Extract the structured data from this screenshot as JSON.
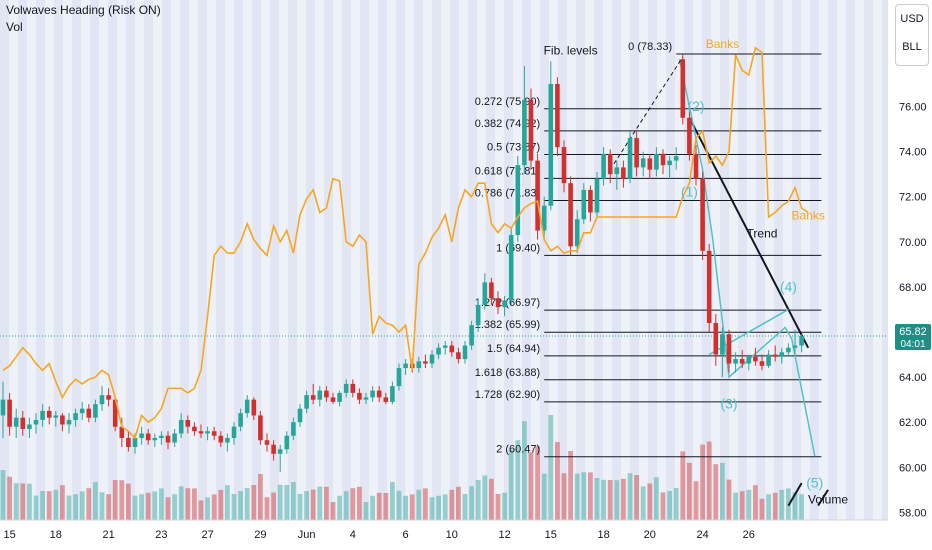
{
  "header": {
    "title": "Volwaves Heading (Risk ON)",
    "vol_label": "Vol"
  },
  "currency": {
    "top": "USD",
    "bottom": "BLL"
  },
  "colors": {
    "bull": "#26a69a",
    "bear": "#d32f2f",
    "banks": "#f5a623",
    "wave": "#4fc3c8",
    "trend": "#131722",
    "fib": "#131722",
    "grid_band": "#dfe3f0",
    "price_tag": "#1f8f84"
  },
  "chart_data": {
    "type": "candlestick",
    "title": "Volwaves Heading (Risk ON)",
    "y_axis": {
      "ylim": [
        58,
        80
      ],
      "ticks": [
        58,
        60,
        62,
        64,
        66,
        68,
        70,
        72,
        74,
        76
      ],
      "tick_labels": [
        "58.00",
        "60.00",
        "62.00",
        "64.00",
        "66.00",
        "68.00",
        "70.00",
        "72.00",
        "74.00",
        "76.00"
      ]
    },
    "x_axis": {
      "labels": [
        "15",
        "18",
        "21",
        "23",
        "27",
        "29",
        "Jun",
        "4",
        "6",
        "10",
        "12",
        "15",
        "18",
        "20",
        "24",
        "26"
      ],
      "label_bar_index": [
        1,
        8,
        16,
        24,
        31,
        39,
        46,
        53,
        61,
        68,
        76,
        83,
        91,
        98,
        106,
        113
      ]
    },
    "current_price": {
      "value": "65.82",
      "countdown": "04:01",
      "price": 65.82
    },
    "fib_levels": [
      {
        "label": "0 (78.33)",
        "price": 78.33,
        "x0": 102,
        "x1": 124
      },
      {
        "label": "0.272 (75.90)",
        "price": 75.9,
        "x0": 82,
        "x1": 124
      },
      {
        "label": "0.382 (74.92)",
        "price": 74.92,
        "x0": 82,
        "x1": 124
      },
      {
        "label": "0.5 (73.87)",
        "price": 73.87,
        "x0": 82,
        "x1": 124
      },
      {
        "label": "0.618 (72.81)",
        "price": 72.81,
        "x0": 82,
        "x1": 124
      },
      {
        "label": "0.786 (71.83)",
        "price": 71.83,
        "x0": 82,
        "x1": 124
      },
      {
        "label": "1 (69.40)",
        "price": 69.4,
        "x0": 82,
        "x1": 124
      },
      {
        "label": "1.272 (66.97)",
        "price": 66.97,
        "x0": 82,
        "x1": 124
      },
      {
        "label": "1.382 (65.99)",
        "price": 65.99,
        "x0": 82,
        "x1": 124
      },
      {
        "label": "1.5 (64.94)",
        "price": 64.94,
        "x0": 82,
        "x1": 124
      },
      {
        "label": "1.618 (63.88)",
        "price": 63.88,
        "x0": 82,
        "x1": 124
      },
      {
        "label": "1.728 (62.90)",
        "price": 62.9,
        "x0": 82,
        "x1": 124
      },
      {
        "label": "2 (60.47)",
        "price": 60.47,
        "x0": 82,
        "x1": 124
      }
    ],
    "annotations": [
      {
        "text": "Fib. levels",
        "bar": 86,
        "price": 78.3,
        "color": "#131722"
      },
      {
        "text": "Banks",
        "bar": 109,
        "price": 78.6,
        "color": "#f5a623"
      },
      {
        "text": "Banks",
        "bar": 122,
        "price": 71.0,
        "color": "#f5a623"
      },
      {
        "text": "Trend",
        "bar": 115,
        "price": 70.2,
        "color": "#131722"
      },
      {
        "text": "Volume",
        "bar": 125,
        "price": 58.4,
        "color": "#131722"
      },
      {
        "text": "(2)",
        "bar": 105,
        "price": 75.8,
        "color": "#4fc3c8"
      },
      {
        "text": "(1)",
        "bar": 104,
        "price": 72.0,
        "color": "#4fc3c8"
      },
      {
        "text": "(4)",
        "bar": 119,
        "price": 67.8,
        "color": "#4fc3c8"
      },
      {
        "text": "(3)",
        "bar": 110,
        "price": 62.6,
        "color": "#4fc3c8"
      },
      {
        "text": "(5)",
        "bar": 123,
        "price": 59.1,
        "color": "#4fc3c8"
      }
    ],
    "trend_line": {
      "from": [
        104,
        75.5
      ],
      "to": [
        122,
        65.3
      ]
    },
    "wave_path": [
      [
        102.5,
        78.1
      ],
      [
        106,
        73.2
      ],
      [
        107.5,
        70.2
      ],
      [
        110,
        64.0
      ],
      [
        118.5,
        66.2
      ],
      [
        119.5,
        65.7
      ],
      [
        123,
        60.5
      ]
    ],
    "wave_channel": [
      [
        107,
        65.0
      ],
      [
        119,
        67.0
      ]
    ],
    "dashed_rise": [
      [
        92,
        73.2
      ],
      [
        103,
        78.2
      ]
    ],
    "volume_lines": [
      [
        119,
        58.3
      ],
      [
        121,
        59.3
      ],
      [
        123.5,
        58.3
      ],
      [
        125,
        59.0
      ]
    ],
    "candles": [
      {
        "o": 62.3,
        "h": 63.8,
        "l": 61.3,
        "c": 63.0
      },
      {
        "o": 63.0,
        "h": 63.3,
        "l": 61.4,
        "c": 61.8
      },
      {
        "o": 61.8,
        "h": 62.6,
        "l": 61.3,
        "c": 62.2
      },
      {
        "o": 62.2,
        "h": 62.5,
        "l": 61.4,
        "c": 61.7
      },
      {
        "o": 61.7,
        "h": 62.2,
        "l": 61.3,
        "c": 61.9
      },
      {
        "o": 61.9,
        "h": 62.4,
        "l": 61.5,
        "c": 62.1
      },
      {
        "o": 62.1,
        "h": 62.8,
        "l": 61.8,
        "c": 62.5
      },
      {
        "o": 62.5,
        "h": 62.7,
        "l": 61.9,
        "c": 62.2
      },
      {
        "o": 62.2,
        "h": 62.5,
        "l": 61.8,
        "c": 62.3
      },
      {
        "o": 62.3,
        "h": 62.4,
        "l": 61.6,
        "c": 61.9
      },
      {
        "o": 61.9,
        "h": 62.4,
        "l": 61.5,
        "c": 62.1
      },
      {
        "o": 62.1,
        "h": 62.6,
        "l": 61.8,
        "c": 62.4
      },
      {
        "o": 62.4,
        "h": 62.9,
        "l": 62.1,
        "c": 62.6
      },
      {
        "o": 62.6,
        "h": 62.8,
        "l": 62.0,
        "c": 62.2
      },
      {
        "o": 62.2,
        "h": 63.0,
        "l": 62.0,
        "c": 62.8
      },
      {
        "o": 62.8,
        "h": 63.6,
        "l": 62.5,
        "c": 63.2
      },
      {
        "o": 63.2,
        "h": 63.5,
        "l": 62.7,
        "c": 63.0
      },
      {
        "o": 63.0,
        "h": 63.1,
        "l": 61.6,
        "c": 61.8
      },
      {
        "o": 61.8,
        "h": 62.2,
        "l": 60.9,
        "c": 61.3
      },
      {
        "o": 61.3,
        "h": 61.6,
        "l": 60.7,
        "c": 60.9
      },
      {
        "o": 60.9,
        "h": 61.5,
        "l": 60.6,
        "c": 61.3
      },
      {
        "o": 61.3,
        "h": 61.8,
        "l": 61.0,
        "c": 61.5
      },
      {
        "o": 61.5,
        "h": 61.7,
        "l": 61.0,
        "c": 61.2
      },
      {
        "o": 61.2,
        "h": 61.5,
        "l": 60.9,
        "c": 61.3
      },
      {
        "o": 61.3,
        "h": 61.6,
        "l": 61.0,
        "c": 61.4
      },
      {
        "o": 61.4,
        "h": 61.6,
        "l": 60.8,
        "c": 61.1
      },
      {
        "o": 61.1,
        "h": 61.7,
        "l": 60.9,
        "c": 61.5
      },
      {
        "o": 61.5,
        "h": 62.4,
        "l": 61.3,
        "c": 62.1
      },
      {
        "o": 62.1,
        "h": 62.3,
        "l": 61.5,
        "c": 61.8
      },
      {
        "o": 61.8,
        "h": 62.0,
        "l": 61.4,
        "c": 61.6
      },
      {
        "o": 61.6,
        "h": 61.9,
        "l": 61.3,
        "c": 61.5
      },
      {
        "o": 61.5,
        "h": 61.8,
        "l": 61.2,
        "c": 61.6
      },
      {
        "o": 61.6,
        "h": 61.8,
        "l": 61.2,
        "c": 61.4
      },
      {
        "o": 61.4,
        "h": 61.6,
        "l": 60.9,
        "c": 61.1
      },
      {
        "o": 61.1,
        "h": 61.5,
        "l": 60.7,
        "c": 61.3
      },
      {
        "o": 61.3,
        "h": 62.0,
        "l": 61.0,
        "c": 61.8
      },
      {
        "o": 61.8,
        "h": 62.6,
        "l": 61.6,
        "c": 62.4
      },
      {
        "o": 62.4,
        "h": 63.2,
        "l": 62.2,
        "c": 63.0
      },
      {
        "o": 63.0,
        "h": 63.1,
        "l": 62.1,
        "c": 62.3
      },
      {
        "o": 62.3,
        "h": 62.5,
        "l": 61.0,
        "c": 61.2
      },
      {
        "o": 61.2,
        "h": 61.5,
        "l": 60.7,
        "c": 61.0
      },
      {
        "o": 61.0,
        "h": 61.2,
        "l": 60.3,
        "c": 60.6
      },
      {
        "o": 60.6,
        "h": 61.0,
        "l": 59.8,
        "c": 60.8
      },
      {
        "o": 60.8,
        "h": 61.6,
        "l": 60.6,
        "c": 61.4
      },
      {
        "o": 61.4,
        "h": 62.2,
        "l": 61.2,
        "c": 62.0
      },
      {
        "o": 62.0,
        "h": 62.8,
        "l": 61.8,
        "c": 62.6
      },
      {
        "o": 62.6,
        "h": 63.4,
        "l": 62.4,
        "c": 63.2
      },
      {
        "o": 63.2,
        "h": 63.7,
        "l": 62.8,
        "c": 63.0
      },
      {
        "o": 63.0,
        "h": 63.6,
        "l": 62.7,
        "c": 63.4
      },
      {
        "o": 63.4,
        "h": 63.6,
        "l": 62.9,
        "c": 63.1
      },
      {
        "o": 63.1,
        "h": 63.3,
        "l": 62.8,
        "c": 62.9
      },
      {
        "o": 62.9,
        "h": 63.4,
        "l": 62.7,
        "c": 63.3
      },
      {
        "o": 63.3,
        "h": 63.9,
        "l": 63.1,
        "c": 63.7
      },
      {
        "o": 63.7,
        "h": 63.9,
        "l": 63.1,
        "c": 63.3
      },
      {
        "o": 63.3,
        "h": 63.5,
        "l": 62.8,
        "c": 63.0
      },
      {
        "o": 63.0,
        "h": 63.3,
        "l": 62.8,
        "c": 63.1
      },
      {
        "o": 63.1,
        "h": 63.6,
        "l": 62.9,
        "c": 63.4
      },
      {
        "o": 63.4,
        "h": 63.6,
        "l": 62.9,
        "c": 63.1
      },
      {
        "o": 63.1,
        "h": 63.3,
        "l": 62.8,
        "c": 62.9
      },
      {
        "o": 62.9,
        "h": 63.8,
        "l": 62.8,
        "c": 63.6
      },
      {
        "o": 63.6,
        "h": 64.6,
        "l": 63.4,
        "c": 64.4
      },
      {
        "o": 64.4,
        "h": 64.8,
        "l": 64.1,
        "c": 64.6
      },
      {
        "o": 64.6,
        "h": 64.8,
        "l": 64.2,
        "c": 64.4
      },
      {
        "o": 64.4,
        "h": 64.9,
        "l": 64.2,
        "c": 64.7
      },
      {
        "o": 64.7,
        "h": 65.0,
        "l": 64.4,
        "c": 64.6
      },
      {
        "o": 64.6,
        "h": 65.2,
        "l": 64.4,
        "c": 65.0
      },
      {
        "o": 65.0,
        "h": 65.5,
        "l": 64.8,
        "c": 65.3
      },
      {
        "o": 65.3,
        "h": 65.6,
        "l": 65.0,
        "c": 65.4
      },
      {
        "o": 65.4,
        "h": 65.6,
        "l": 64.9,
        "c": 65.1
      },
      {
        "o": 65.1,
        "h": 65.3,
        "l": 64.6,
        "c": 64.8
      },
      {
        "o": 64.8,
        "h": 65.6,
        "l": 64.6,
        "c": 65.4
      },
      {
        "o": 65.4,
        "h": 66.5,
        "l": 65.2,
        "c": 66.3
      },
      {
        "o": 66.3,
        "h": 67.5,
        "l": 66.0,
        "c": 67.2
      },
      {
        "o": 67.2,
        "h": 68.6,
        "l": 67.0,
        "c": 68.2
      },
      {
        "o": 68.2,
        "h": 68.4,
        "l": 67.2,
        "c": 67.5
      },
      {
        "o": 67.5,
        "h": 67.8,
        "l": 66.8,
        "c": 67.1
      },
      {
        "o": 67.1,
        "h": 67.6,
        "l": 66.7,
        "c": 67.4
      },
      {
        "o": 67.4,
        "h": 70.6,
        "l": 67.2,
        "c": 70.3
      },
      {
        "o": 70.3,
        "h": 73.8,
        "l": 70.0,
        "c": 73.4
      },
      {
        "o": 73.4,
        "h": 77.8,
        "l": 73.0,
        "c": 76.3
      },
      {
        "o": 76.3,
        "h": 76.8,
        "l": 73.2,
        "c": 73.6
      },
      {
        "o": 73.6,
        "h": 73.9,
        "l": 70.1,
        "c": 70.5
      },
      {
        "o": 70.5,
        "h": 72.0,
        "l": 70.1,
        "c": 71.6
      },
      {
        "o": 71.6,
        "h": 78.0,
        "l": 71.4,
        "c": 77.0
      },
      {
        "o": 77.0,
        "h": 77.3,
        "l": 73.8,
        "c": 74.2
      },
      {
        "o": 74.2,
        "h": 74.5,
        "l": 72.2,
        "c": 72.6
      },
      {
        "o": 72.6,
        "h": 72.9,
        "l": 69.4,
        "c": 69.8
      },
      {
        "o": 69.8,
        "h": 71.4,
        "l": 69.5,
        "c": 71.0
      },
      {
        "o": 71.0,
        "h": 72.6,
        "l": 70.8,
        "c": 72.3
      },
      {
        "o": 72.3,
        "h": 72.5,
        "l": 70.9,
        "c": 71.3
      },
      {
        "o": 71.3,
        "h": 73.1,
        "l": 71.1,
        "c": 72.8
      },
      {
        "o": 72.8,
        "h": 74.2,
        "l": 72.5,
        "c": 73.9
      },
      {
        "o": 73.9,
        "h": 74.1,
        "l": 72.6,
        "c": 73.0
      },
      {
        "o": 73.0,
        "h": 73.6,
        "l": 72.3,
        "c": 73.3
      },
      {
        "o": 73.3,
        "h": 73.6,
        "l": 72.4,
        "c": 72.8
      },
      {
        "o": 72.8,
        "h": 74.9,
        "l": 72.6,
        "c": 74.6
      },
      {
        "o": 74.6,
        "h": 74.9,
        "l": 72.9,
        "c": 73.3
      },
      {
        "o": 73.3,
        "h": 74.0,
        "l": 72.9,
        "c": 73.7
      },
      {
        "o": 73.7,
        "h": 73.9,
        "l": 72.8,
        "c": 73.2
      },
      {
        "o": 73.2,
        "h": 74.2,
        "l": 72.9,
        "c": 73.9
      },
      {
        "o": 73.9,
        "h": 74.1,
        "l": 73.0,
        "c": 73.4
      },
      {
        "o": 73.4,
        "h": 73.8,
        "l": 72.8,
        "c": 73.6
      },
      {
        "o": 73.6,
        "h": 74.2,
        "l": 73.2,
        "c": 73.8
      },
      {
        "o": 78.1,
        "h": 78.3,
        "l": 75.2,
        "c": 75.5
      },
      {
        "o": 75.5,
        "h": 75.8,
        "l": 73.6,
        "c": 73.9
      },
      {
        "o": 73.9,
        "h": 74.3,
        "l": 72.5,
        "c": 72.8
      },
      {
        "o": 72.8,
        "h": 73.1,
        "l": 69.2,
        "c": 69.6
      },
      {
        "o": 69.6,
        "h": 69.9,
        "l": 66.0,
        "c": 66.4
      },
      {
        "o": 66.4,
        "h": 66.8,
        "l": 64.5,
        "c": 65.0
      },
      {
        "o": 65.0,
        "h": 66.2,
        "l": 64.0,
        "c": 65.9
      },
      {
        "o": 65.9,
        "h": 66.1,
        "l": 64.2,
        "c": 64.6
      },
      {
        "o": 64.6,
        "h": 65.1,
        "l": 64.2,
        "c": 64.8
      },
      {
        "o": 64.8,
        "h": 65.2,
        "l": 64.4,
        "c": 64.6
      },
      {
        "o": 64.6,
        "h": 65.0,
        "l": 64.3,
        "c": 64.9
      },
      {
        "o": 64.9,
        "h": 65.3,
        "l": 64.5,
        "c": 64.7
      },
      {
        "o": 64.7,
        "h": 65.0,
        "l": 64.3,
        "c": 64.5
      },
      {
        "o": 64.5,
        "h": 65.2,
        "l": 64.4,
        "c": 65.0
      },
      {
        "o": 65.0,
        "h": 65.4,
        "l": 64.7,
        "c": 64.9
      },
      {
        "o": 64.9,
        "h": 65.3,
        "l": 64.6,
        "c": 65.1
      },
      {
        "o": 65.1,
        "h": 65.5,
        "l": 64.9,
        "c": 65.3
      },
      {
        "o": 65.3,
        "h": 66.1,
        "l": 65.0,
        "c": 65.4
      },
      {
        "o": 65.4,
        "h": 65.9,
        "l": 65.1,
        "c": 65.82
      }
    ],
    "banks_line": [
      64.3,
      64.5,
      64.9,
      65.3,
      65.0,
      64.6,
      64.3,
      64.6,
      63.8,
      63.1,
      63.6,
      63.9,
      63.7,
      63.9,
      64.0,
      64.3,
      64.1,
      63.1,
      61.8,
      61.6,
      61.3,
      62.3,
      62.0,
      62.2,
      62.6,
      63.5,
      63.5,
      63.5,
      63.3,
      63.5,
      64.3,
      66.7,
      69.4,
      69.8,
      69.5,
      69.5,
      70.0,
      70.8,
      70.1,
      69.7,
      69.4,
      70.7,
      70.0,
      70.5,
      69.5,
      71.2,
      71.9,
      72.3,
      71.3,
      71.5,
      72.8,
      72.7,
      70.0,
      69.8,
      70.3,
      70.0,
      65.9,
      66.7,
      66.4,
      66.3,
      66.0,
      66.3,
      64.3,
      69.0,
      69.5,
      70.2,
      70.6,
      71.2,
      70.0,
      71.5,
      72.3,
      72.0,
      72.6,
      72.6,
      70.8,
      70.4,
      70.8,
      70.6,
      71.1,
      71.5,
      71.7,
      71.8,
      70.1,
      69.6,
      69.8,
      69.5,
      69.6,
      69.6,
      70.4,
      70.4,
      71.1,
      71.1,
      71.1,
      71.1,
      71.1,
      71.1,
      71.1,
      71.1,
      71.1,
      71.1,
      71.1,
      71.1,
      71.1,
      72.0,
      72.6,
      74.6,
      74.9,
      73.5,
      73.8,
      73.4,
      74.0,
      78.3,
      77.6,
      77.4,
      78.6,
      78.4,
      71.1,
      71.3,
      71.6,
      71.8,
      72.4,
      71.5,
      71.3
    ]
  }
}
